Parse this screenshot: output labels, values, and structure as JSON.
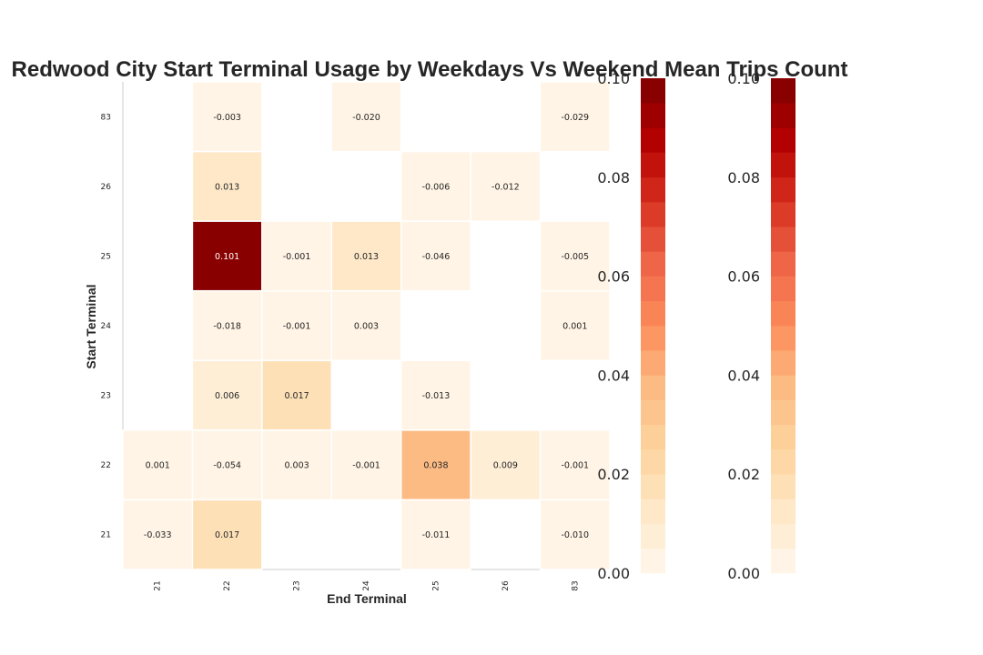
{
  "chart_data": {
    "type": "heatmap",
    "title": "Redwood City Start Terminal Usage by Weekdays Vs Weekend Mean Trips Count",
    "xlabel": "End Terminal",
    "ylabel": "Start Terminal",
    "x_categories": [
      "21",
      "22",
      "23",
      "24",
      "25",
      "26",
      "83"
    ],
    "y_categories": [
      "83",
      "26",
      "25",
      "24",
      "23",
      "22",
      "21"
    ],
    "cells": [
      {
        "y": "83",
        "x": "22",
        "value": -0.003,
        "label": "-0.003"
      },
      {
        "y": "83",
        "x": "24",
        "value": -0.02,
        "label": "-0.020"
      },
      {
        "y": "83",
        "x": "83",
        "value": -0.029,
        "label": "-0.029"
      },
      {
        "y": "26",
        "x": "22",
        "value": 0.013,
        "label": "0.013"
      },
      {
        "y": "26",
        "x": "25",
        "value": -0.006,
        "label": "-0.006"
      },
      {
        "y": "26",
        "x": "26",
        "value": -0.012,
        "label": "-0.012"
      },
      {
        "y": "25",
        "x": "22",
        "value": 0.101,
        "label": "0.101"
      },
      {
        "y": "25",
        "x": "23",
        "value": -0.001,
        "label": "-0.001"
      },
      {
        "y": "25",
        "x": "24",
        "value": 0.013,
        "label": "0.013"
      },
      {
        "y": "25",
        "x": "25",
        "value": -0.046,
        "label": "-0.046"
      },
      {
        "y": "25",
        "x": "83",
        "value": -0.005,
        "label": "-0.005"
      },
      {
        "y": "24",
        "x": "22",
        "value": -0.018,
        "label": "-0.018"
      },
      {
        "y": "24",
        "x": "23",
        "value": -0.001,
        "label": "-0.001"
      },
      {
        "y": "24",
        "x": "24",
        "value": 0.003,
        "label": "0.003"
      },
      {
        "y": "24",
        "x": "83",
        "value": 0.001,
        "label": "0.001"
      },
      {
        "y": "23",
        "x": "22",
        "value": 0.006,
        "label": "0.006"
      },
      {
        "y": "23",
        "x": "23",
        "value": 0.017,
        "label": "0.017"
      },
      {
        "y": "23",
        "x": "25",
        "value": -0.013,
        "label": "-0.013"
      },
      {
        "y": "22",
        "x": "21",
        "value": 0.001,
        "label": "0.001"
      },
      {
        "y": "22",
        "x": "22",
        "value": -0.054,
        "label": "-0.054"
      },
      {
        "y": "22",
        "x": "23",
        "value": 0.003,
        "label": "0.003"
      },
      {
        "y": "22",
        "x": "24",
        "value": -0.001,
        "label": "-0.001"
      },
      {
        "y": "22",
        "x": "25",
        "value": 0.038,
        "label": "0.038"
      },
      {
        "y": "22",
        "x": "26",
        "value": 0.009,
        "label": "0.009"
      },
      {
        "y": "22",
        "x": "83",
        "value": -0.001,
        "label": "-0.001"
      },
      {
        "y": "21",
        "x": "21",
        "value": -0.033,
        "label": "-0.033"
      },
      {
        "y": "21",
        "x": "22",
        "value": 0.017,
        "label": "0.017"
      },
      {
        "y": "21",
        "x": "25",
        "value": -0.011,
        "label": "-0.011"
      },
      {
        "y": "21",
        "x": "83",
        "value": -0.01,
        "label": "-0.010"
      }
    ],
    "color_range": [
      0.0,
      0.1
    ],
    "colormap": "OrRd (discrete)",
    "colormap_colors": [
      "#fff7ec",
      "#fee8c8",
      "#fdd49e",
      "#fdbb84",
      "#fc8d59",
      "#ef6548",
      "#d7301f",
      "#b30000",
      "#7f0000"
    ],
    "colorbars": [
      {
        "ticks": [
          "0.00",
          "0.02",
          "0.04",
          "0.06",
          "0.08",
          "0.10"
        ],
        "range": [
          0.0,
          0.1
        ]
      },
      {
        "ticks": [
          "0.00",
          "0.02",
          "0.04",
          "0.06",
          "0.08",
          "0.10"
        ],
        "range": [
          0.0,
          0.1
        ]
      }
    ],
    "grid": false
  }
}
